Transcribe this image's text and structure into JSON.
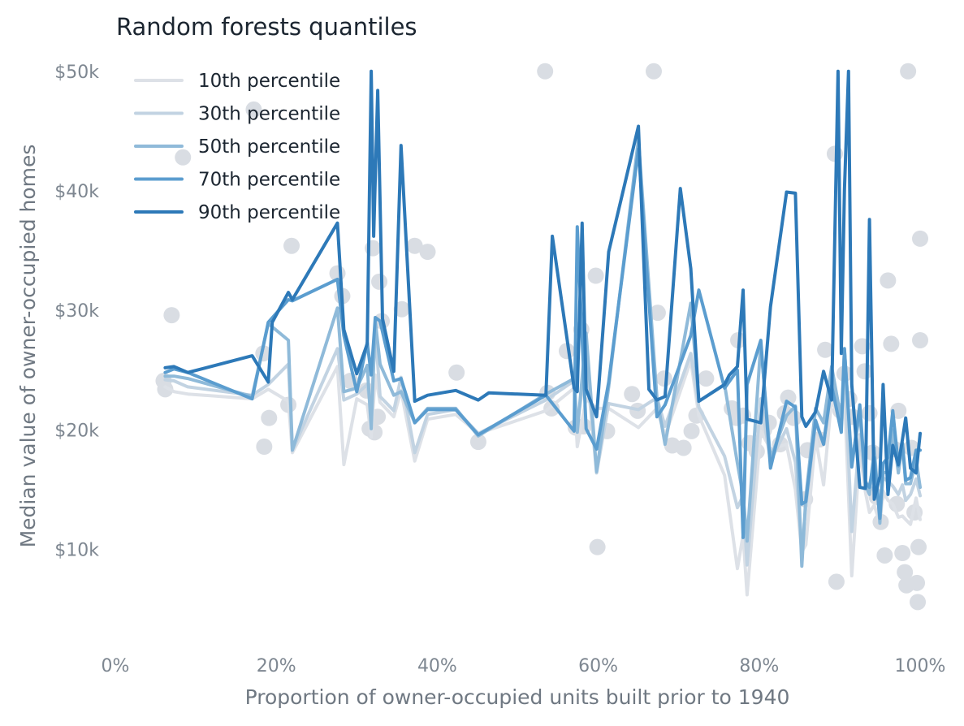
{
  "chart_data": {
    "type": "line",
    "title": "Random forests quantiles",
    "xlabel": "Proportion of owner-occupied units built prior to 1940",
    "ylabel": "Median value of owner-occupied homes",
    "xlim": [
      0,
      100
    ],
    "ylim": [
      2.5,
      52.5
    ],
    "x_ticks": [
      0,
      20,
      40,
      60,
      80,
      100
    ],
    "x_tick_labels": [
      "0%",
      "20%",
      "40%",
      "60%",
      "80%",
      "100%"
    ],
    "y_ticks": [
      10,
      20,
      30,
      40,
      50
    ],
    "y_tick_labels": [
      "$10k",
      "$20k",
      "$30k",
      "$40k",
      "$50k"
    ],
    "grid": false,
    "legend_position": "top-left",
    "colors": {
      "scatter": "#d9dde3",
      "p10": "#dde1e7",
      "p30": "#c2d3e2",
      "p50": "#8fbad9",
      "p70": "#5b9dcf",
      "p90": "#2d79b8"
    },
    "scatter": [
      [
        6,
        24.1
      ],
      [
        6.2,
        23.4
      ],
      [
        7,
        29.6
      ],
      [
        8.4,
        42.8
      ],
      [
        17.2,
        46.8
      ],
      [
        18.4,
        26.4
      ],
      [
        18.5,
        18.6
      ],
      [
        19.1,
        21
      ],
      [
        21.9,
        35.4
      ],
      [
        21.5,
        22.1
      ],
      [
        27.6,
        33.1
      ],
      [
        28.2,
        31.2
      ],
      [
        29.2,
        24.1
      ],
      [
        31.2,
        23.3
      ],
      [
        31.6,
        20.1
      ],
      [
        32,
        35.2
      ],
      [
        32.2,
        19.8
      ],
      [
        32.6,
        21.1
      ],
      [
        32.8,
        32.4
      ],
      [
        33.1,
        29.1
      ],
      [
        35.6,
        30.1
      ],
      [
        37.2,
        35.4
      ],
      [
        38.8,
        34.9
      ],
      [
        42.4,
        24.8
      ],
      [
        45.1,
        19
      ],
      [
        53.4,
        50
      ],
      [
        53.7,
        23.1
      ],
      [
        54.2,
        21.8
      ],
      [
        56.1,
        26.6
      ],
      [
        57.2,
        20.2
      ],
      [
        57.9,
        28.4
      ],
      [
        58.2,
        20.3
      ],
      [
        59.7,
        32.9
      ],
      [
        59.9,
        10.2
      ],
      [
        61.1,
        19.9
      ],
      [
        64.2,
        23
      ],
      [
        64.9,
        21.6
      ],
      [
        66.9,
        50
      ],
      [
        67.4,
        29.8
      ],
      [
        68.2,
        24.3
      ],
      [
        69.2,
        18.7
      ],
      [
        70.6,
        18.5
      ],
      [
        71.6,
        19.9
      ],
      [
        72.2,
        21.2
      ],
      [
        73.4,
        24.3
      ],
      [
        76.6,
        21.8
      ],
      [
        77.2,
        21
      ],
      [
        77.4,
        27.5
      ],
      [
        78,
        21.2
      ],
      [
        78.8,
        18.9
      ],
      [
        79.7,
        18.2
      ],
      [
        80.6,
        20
      ],
      [
        81.2,
        20.6
      ],
      [
        82.6,
        18.8
      ],
      [
        83.2,
        21.4
      ],
      [
        83.6,
        22.7
      ],
      [
        84.3,
        21
      ],
      [
        85.7,
        14.2
      ],
      [
        86,
        18.3
      ],
      [
        87.5,
        19.2
      ],
      [
        88.2,
        26.7
      ],
      [
        89.4,
        43.1
      ],
      [
        89.6,
        7.3
      ],
      [
        90.1,
        21.6
      ],
      [
        90.6,
        24.7
      ],
      [
        91.2,
        22.6
      ],
      [
        91.6,
        21.1
      ],
      [
        92.8,
        27
      ],
      [
        93.1,
        24.9
      ],
      [
        93.7,
        21.4
      ],
      [
        94.1,
        18.1
      ],
      [
        94.6,
        14.4
      ],
      [
        95.1,
        12.3
      ],
      [
        95.6,
        9.5
      ],
      [
        96,
        32.5
      ],
      [
        96.4,
        27.2
      ],
      [
        96.8,
        18.4
      ],
      [
        97.1,
        13.8
      ],
      [
        97.3,
        21.6
      ],
      [
        97.8,
        9.7
      ],
      [
        98.1,
        8.1
      ],
      [
        98.3,
        7
      ],
      [
        98.5,
        50
      ],
      [
        98.9,
        18.5
      ],
      [
        99.3,
        13.1
      ],
      [
        99.6,
        7.2
      ],
      [
        99.7,
        5.6
      ],
      [
        99.8,
        10.2
      ],
      [
        100,
        36
      ],
      [
        100,
        27.5
      ]
    ],
    "series": [
      {
        "name": "10th percentile",
        "x": [
          6.2,
          7.3,
          9,
          17,
          19,
          21.5,
          22,
          27.6,
          28.4,
          30,
          31.3,
          31.8,
          32.3,
          32.9,
          34.6,
          35.5,
          37.2,
          38.8,
          42.3,
          45.1,
          53.5,
          57,
          57.4,
          58.5,
          59.8,
          61.3,
          65,
          67.3,
          68.3,
          71.5,
          72.5,
          75.7,
          77.3,
          78,
          78.5,
          80.2,
          81.4,
          83.4,
          84.5,
          85.3,
          85.8,
          87,
          88,
          89,
          90.2,
          90.6,
          91.5,
          92.5,
          93.2,
          93.7,
          94.3,
          95,
          95.4,
          96,
          96.6,
          97.3,
          97.8,
          98.2,
          98.8,
          99.5,
          100
        ],
        "values": [
          23.6,
          23.2,
          23,
          22.6,
          23.4,
          22.4,
          18.1,
          25.3,
          17.1,
          22.6,
          22.1,
          19.4,
          24.6,
          22.3,
          21.1,
          23.3,
          17.4,
          20.9,
          21.3,
          19.7,
          21.6,
          23.5,
          18.6,
          22.6,
          21.8,
          21.8,
          20.2,
          21.8,
          19.5,
          25.8,
          21.2,
          16.2,
          8.4,
          11.2,
          6.2,
          19.9,
          18.4,
          18.8,
          15,
          9.8,
          10.4,
          19.4,
          15.4,
          22.6,
          20.3,
          22.9,
          7.8,
          18.3,
          14.8,
          13.1,
          13.7,
          12.2,
          14.9,
          14.1,
          13.8,
          12.7,
          12.8,
          12.5,
          12.1,
          14.3,
          12.5
        ]
      },
      {
        "name": "30th percentile",
        "x": [
          6.2,
          7.3,
          9,
          17,
          19,
          21.5,
          22,
          27.6,
          28.4,
          30,
          31.3,
          31.8,
          32.3,
          32.9,
          34.6,
          35.5,
          37.2,
          38.8,
          42.3,
          45.1,
          53.5,
          57,
          57.4,
          58.5,
          59.8,
          61.3,
          65,
          67.3,
          68.3,
          71.5,
          72.5,
          75.7,
          77.3,
          78,
          78.5,
          80.2,
          81.4,
          83.4,
          84.5,
          85.3,
          85.8,
          87,
          88,
          89,
          90.2,
          90.6,
          91.5,
          92.5,
          93.2,
          93.7,
          94.3,
          95,
          95.4,
          96,
          96.6,
          97.3,
          97.8,
          98.2,
          98.8,
          99.5,
          100
        ],
        "values": [
          24.2,
          24.1,
          23.6,
          22.9,
          23.8,
          25.5,
          18.3,
          26.8,
          22.5,
          23,
          23.8,
          21.5,
          28.3,
          22.8,
          21.6,
          24.4,
          18.1,
          21.3,
          21.7,
          19.7,
          22.5,
          24.1,
          20.4,
          25.8,
          16.4,
          22.2,
          21.7,
          22.7,
          20.3,
          26.4,
          21.9,
          17.8,
          13.5,
          14.5,
          8.7,
          22.6,
          17.4,
          20.1,
          17.3,
          10.1,
          13.6,
          20.6,
          18.9,
          24.2,
          20.4,
          25.2,
          11.5,
          19.6,
          15.7,
          15.3,
          14.9,
          13.9,
          16,
          15.7,
          15.3,
          14.6,
          15.4,
          14.1,
          14.6,
          15.9,
          14.5
        ]
      },
      {
        "name": "50th percentile",
        "x": [
          6.2,
          7.3,
          9,
          17,
          19,
          21.5,
          22,
          27.6,
          28.4,
          30,
          31.3,
          31.8,
          32.3,
          32.9,
          34.6,
          35.5,
          37.2,
          38.8,
          42.3,
          45.1,
          53.5,
          57,
          57.4,
          58.5,
          59.8,
          61.3,
          65,
          67.3,
          68.3,
          71.5,
          72.5,
          75.7,
          77.3,
          78,
          78.5,
          80.2,
          81.4,
          83.4,
          84.5,
          85.3,
          85.8,
          87,
          88,
          89,
          90.2,
          90.6,
          91.5,
          92.5,
          93.2,
          93.7,
          94.3,
          95,
          95.4,
          96,
          96.6,
          97.3,
          97.8,
          98.2,
          98.8,
          99.5,
          100
        ],
        "values": [
          24.5,
          24.5,
          24.3,
          22.8,
          28.9,
          27.5,
          18.3,
          30.2,
          23.2,
          23.5,
          25.4,
          20.1,
          29.1,
          25.5,
          22.9,
          23.2,
          20.6,
          21.8,
          21.8,
          19.5,
          23,
          24.3,
          19.8,
          28.1,
          16.5,
          23.6,
          44.3,
          22.7,
          18.8,
          30.6,
          22.4,
          23.8,
          17.2,
          14.5,
          10.7,
          27.2,
          17.6,
          21.2,
          22,
          8.6,
          14.4,
          21.8,
          20.6,
          25.3,
          20.8,
          26.7,
          17.2,
          21.5,
          15.4,
          14.6,
          18.5,
          12.2,
          16.4,
          16.5,
          20,
          16.4,
          18.8,
          15.5,
          15.5,
          17.5,
          15.2
        ]
      },
      {
        "name": "70th percentile",
        "x": [
          6.2,
          7.3,
          9,
          17,
          19,
          21.5,
          22,
          27.6,
          28.4,
          30,
          31.3,
          31.8,
          32.3,
          32.9,
          34.6,
          35.5,
          37.2,
          38.8,
          42.3,
          45.1,
          53.5,
          57,
          57.4,
          58.5,
          59.8,
          61.3,
          65,
          67.3,
          68.3,
          71.5,
          72.5,
          75.7,
          77.3,
          78,
          78.5,
          80.2,
          81.4,
          83.4,
          84.5,
          85.3,
          85.8,
          87,
          88,
          89,
          90.2,
          90.6,
          91.5,
          92.5,
          93.2,
          93.7,
          94.3,
          95,
          95.4,
          96,
          96.6,
          97.3,
          97.8,
          98.2,
          98.8,
          99.5,
          100
        ],
        "values": [
          24.8,
          25.1,
          24.8,
          22.6,
          29,
          30.9,
          30.8,
          32.6,
          27.9,
          23.2,
          27.3,
          24.6,
          29.4,
          29.1,
          24.1,
          24.3,
          20.6,
          21.7,
          21.7,
          19.6,
          22.9,
          19.9,
          37,
          20.1,
          18.4,
          24,
          43.5,
          21.1,
          22.1,
          27.9,
          31.7,
          23.5,
          25,
          11,
          23.8,
          27.5,
          16.8,
          22.4,
          21.9,
          13.8,
          14,
          20.8,
          18.8,
          23.7,
          19.8,
          26.8,
          16.9,
          22.1,
          15.6,
          15.2,
          17.7,
          12.6,
          17.2,
          17.7,
          21.6,
          17,
          18.9,
          15.8,
          16,
          18.3,
          18.3
        ]
      },
      {
        "name": "90th percentile",
        "x": [
          6.2,
          7.3,
          9,
          17,
          19,
          19.5,
          21.5,
          22,
          27.6,
          28.4,
          30,
          31.3,
          31.8,
          32.1,
          32.6,
          33.2,
          34.6,
          35.5,
          37.2,
          38.8,
          42.3,
          45.1,
          46.4,
          53.5,
          54.3,
          57,
          57.4,
          58,
          58.5,
          59.8,
          61.3,
          65,
          66.3,
          67.3,
          68.3,
          70.2,
          71.5,
          72.5,
          75.7,
          76.3,
          77.3,
          78,
          78.5,
          80.2,
          81.4,
          83.4,
          84.5,
          85.3,
          85.8,
          87,
          88,
          89,
          89.8,
          90.2,
          90.6,
          91.1,
          91.5,
          92.5,
          93.2,
          93.7,
          94.3,
          95,
          95.4,
          96,
          96.6,
          97.3,
          97.8,
          98.2,
          98.8,
          99.5,
          100
        ],
        "values": [
          25.2,
          25.3,
          24.8,
          26.2,
          24,
          29,
          31.5,
          30.9,
          37.3,
          28.4,
          24.7,
          27.2,
          50,
          36.2,
          48.4,
          29.3,
          24.9,
          43.8,
          22.4,
          22.9,
          23.3,
          22.5,
          23.1,
          22.9,
          36.2,
          23.5,
          23.2,
          37.3,
          23.4,
          21.1,
          34.9,
          45.4,
          23.4,
          22.5,
          22.8,
          40.2,
          33.5,
          22.4,
          23.8,
          24.6,
          25.3,
          31.7,
          20.9,
          20.6,
          30.3,
          39.9,
          39.8,
          21.1,
          20.3,
          21.5,
          24.9,
          22.5,
          50,
          26.4,
          40.1,
          50,
          23.8,
          15.2,
          15.1,
          37.6,
          14.2,
          16.1,
          23.8,
          14.6,
          18.7,
          17.1,
          19.2,
          21,
          16.8,
          16.4,
          19.7
        ]
      }
    ]
  }
}
